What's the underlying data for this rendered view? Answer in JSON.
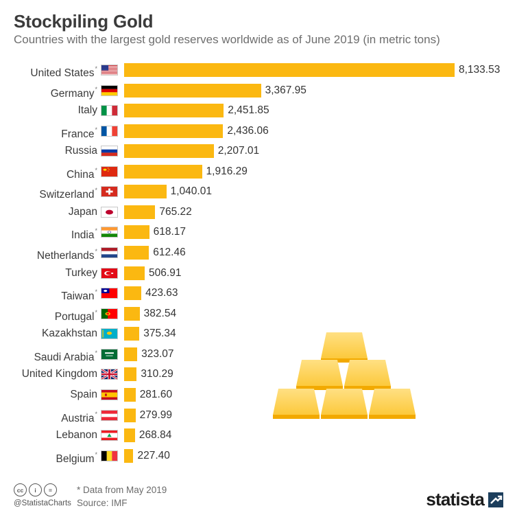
{
  "header": {
    "title": "Stockpiling Gold",
    "subtitle": "Countries with the largest gold reserves worldwide as of June 2019 (in metric tons)"
  },
  "chart_data": {
    "type": "bar",
    "orientation": "horizontal",
    "title": "Stockpiling Gold",
    "subtitle": "Countries with the largest gold reserves worldwide as of June 2019 (in metric tons)",
    "xlabel": "",
    "ylabel": "",
    "xlim": [
      0,
      8133.53
    ],
    "grid": false,
    "bar_color": "#fbb811",
    "categories": [
      "United States",
      "Germany",
      "Italy",
      "France",
      "Russia",
      "China",
      "Switzerland",
      "Japan",
      "India",
      "Netherlands",
      "Turkey",
      "Taiwan",
      "Portugal",
      "Kazakhstan",
      "Saudi Arabia",
      "United Kingdom",
      "Spain",
      "Austria",
      "Lebanon",
      "Belgium"
    ],
    "asterisk": [
      true,
      true,
      false,
      true,
      false,
      true,
      true,
      false,
      true,
      true,
      false,
      true,
      true,
      false,
      true,
      false,
      false,
      true,
      false,
      true
    ],
    "flags": [
      "flag-us-icon",
      "flag-de-icon",
      "flag-it-icon",
      "flag-fr-icon",
      "flag-ru-icon",
      "flag-cn-icon",
      "flag-ch-icon",
      "flag-jp-icon",
      "flag-in-icon",
      "flag-nl-icon",
      "flag-tr-icon",
      "flag-tw-icon",
      "flag-pt-icon",
      "flag-kz-icon",
      "flag-sa-icon",
      "flag-gb-icon",
      "flag-es-icon",
      "flag-at-icon",
      "flag-lb-icon",
      "flag-be-icon"
    ],
    "values": [
      8133.53,
      3367.95,
      2451.85,
      2436.06,
      2207.01,
      1916.29,
      1040.01,
      765.22,
      618.17,
      612.46,
      506.91,
      423.63,
      382.54,
      375.34,
      323.07,
      310.29,
      281.6,
      279.99,
      268.84,
      227.4
    ],
    "value_labels": [
      "8,133.53",
      "3,367.95",
      "2,451.85",
      "2,436.06",
      "2,207.01",
      "1,916.29",
      "1,040.01",
      "765.22",
      "618.17",
      "612.46",
      "506.91",
      "423.63",
      "382.54",
      "375.34",
      "323.07",
      "310.29",
      "281.60",
      "279.99",
      "268.84",
      "227.40"
    ]
  },
  "footer": {
    "note": "* Data from May 2019",
    "source": "Source: IMF",
    "handle": "@StatistaCharts",
    "cc_icons": [
      "cc-icon",
      "attribution-icon",
      "no-derivatives-icon"
    ],
    "cc_text": [
      "cc",
      "i",
      "="
    ],
    "logo_text": "statista"
  }
}
